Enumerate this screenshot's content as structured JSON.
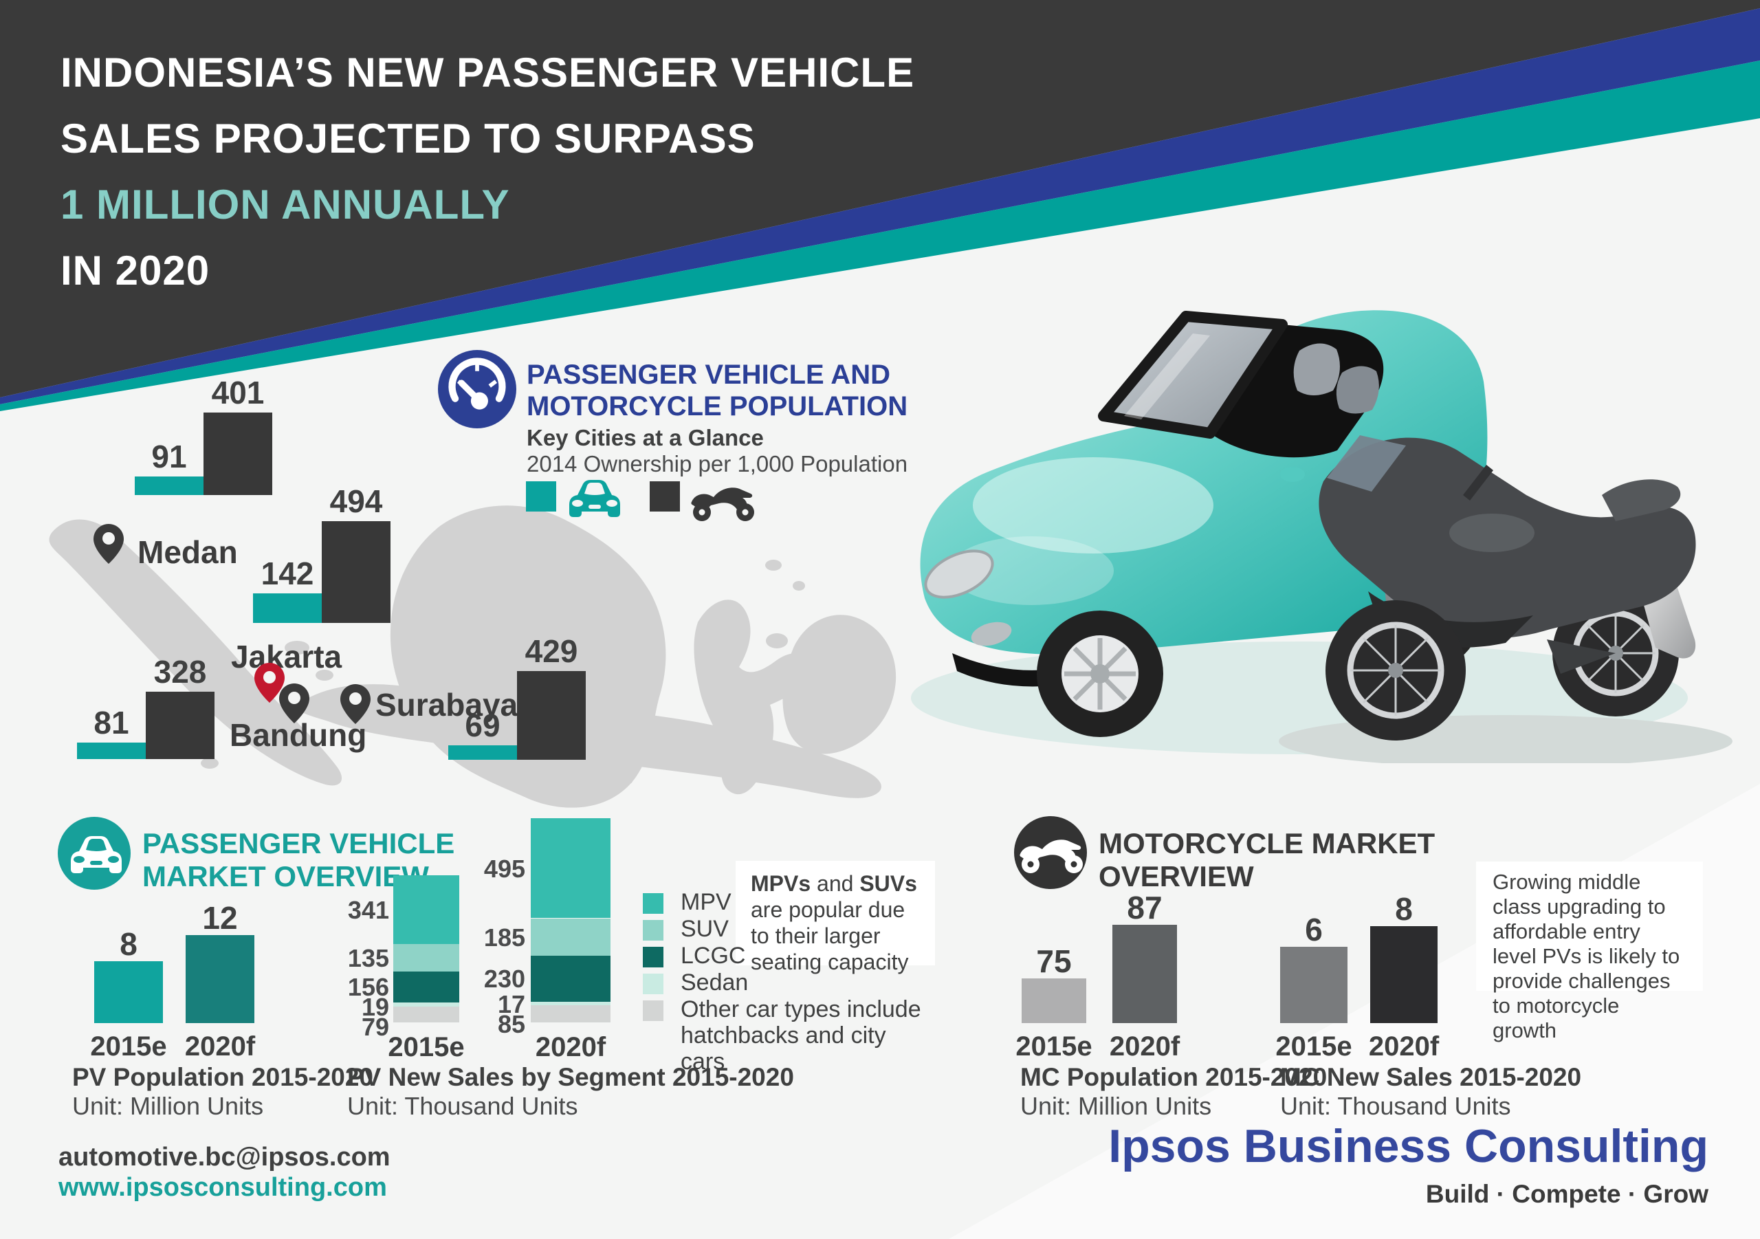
{
  "title": {
    "line1": "INDONESIA’S NEW PASSENGER VEHICLE",
    "line2": "SALES PROJECTED TO SURPASS",
    "line3": "1 MILLION ANNUALLY",
    "line4": "IN 2020"
  },
  "population_section": {
    "heading1": "PASSENGER VEHICLE AND",
    "heading2": "MOTORCYCLE POPULATION",
    "subheading": "Key Cities at a Glance",
    "subnote": "2014 Ownership per 1,000 Population",
    "legend": [
      {
        "name": "passenger-vehicle",
        "color": "#0BA39E"
      },
      {
        "name": "motorcycle",
        "color": "#383838"
      }
    ]
  },
  "pv_section": {
    "heading1": "PASSENGER VEHICLE",
    "heading2": "MARKET OVERVIEW"
  },
  "mc_section": {
    "heading1": "MOTORCYCLE MARKET",
    "heading2": "OVERVIEW"
  },
  "annotations": {
    "pv_note": {
      "bold1": "MPVs",
      "mid": " and ",
      "bold2": "SUVs",
      "rest": " are popular due to their larger seating capacity"
    },
    "mc_note": "Growing middle class upgrading to affordable entry level PVs is likely to provide challenges to motorcycle growth"
  },
  "footer": {
    "email": "automotive.bc@ipsos.com",
    "website": "www.ipsosconsulting.com",
    "brand": "Ipsos Business Consulting",
    "tagline": "Build · Compete · Grow"
  },
  "colors": {
    "header_dark": "#3A3A3A",
    "stripe_blue": "#2B3D96",
    "stripe_teal": "#01A19A",
    "accent_teal": "#0BA39E",
    "accent_blue": "#2B3F96",
    "map_gray": "#D2D2D2",
    "jakarta_pin_red": "#C3172E"
  },
  "chart_data": [
    {
      "id": "city_ownership",
      "type": "bar",
      "title": "Key Cities at a Glance",
      "note": "2014 Ownership per 1,000 Population",
      "series_names": [
        "Passenger Vehicle",
        "Motorcycle"
      ],
      "cities": [
        {
          "name": "Medan",
          "pv": 91,
          "mc": 401
        },
        {
          "name": "Jakarta",
          "pv": 142,
          "mc": 494
        },
        {
          "name": "Bandung",
          "pv": 81,
          "mc": 328
        },
        {
          "name": "Surabaya",
          "pv": 69,
          "mc": 429
        }
      ]
    },
    {
      "id": "pv_population",
      "type": "bar",
      "title": "PV Population 2015-2020",
      "unit": "Unit: Million Units",
      "categories": [
        "2015e",
        "2020f"
      ],
      "values": [
        8,
        12
      ]
    },
    {
      "id": "pv_new_sales_by_segment",
      "type": "stacked-bar",
      "title": "PV New Sales by Segment 2015-2020",
      "unit": "Unit: Thousand Units",
      "categories": [
        "2015e",
        "2020f"
      ],
      "series": [
        {
          "name": "MPV",
          "values": [
            341,
            495
          ],
          "color": "#36BCAE"
        },
        {
          "name": "SUV",
          "values": [
            135,
            185
          ],
          "color": "#8FD3C7"
        },
        {
          "name": "LCGC",
          "values": [
            156,
            230
          ],
          "color": "#0E6A62"
        },
        {
          "name": "Sedan",
          "values": [
            19,
            17
          ],
          "color": "#C9EBE2"
        },
        {
          "name": "Other",
          "values": [
            79,
            85
          ],
          "color": "#D3D5D4",
          "legend_label": "Other car types include hatchbacks and city cars"
        }
      ]
    },
    {
      "id": "mc_population",
      "type": "bar",
      "title": "MC Population 2015-2020",
      "unit": "Unit: Million Units",
      "categories": [
        "2015e",
        "2020f"
      ],
      "values": [
        75,
        87
      ]
    },
    {
      "id": "mc_new_sales",
      "type": "bar",
      "title": "MC New Sales 2015-2020",
      "unit": "Unit: Thousand Units",
      "categories": [
        "2015e",
        "2020f"
      ],
      "values": [
        6,
        8
      ]
    }
  ]
}
